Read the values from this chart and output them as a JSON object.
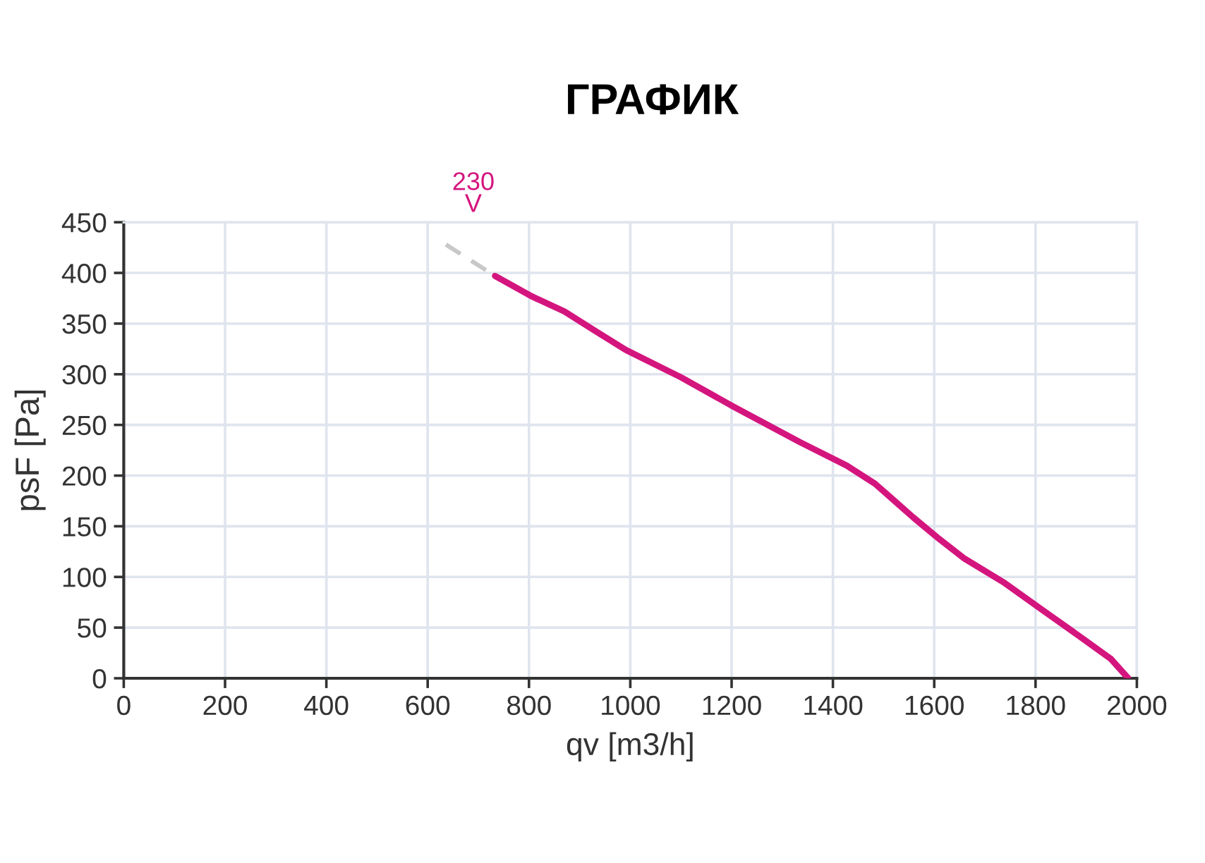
{
  "chart_data": {
    "type": "line",
    "title": "ГРАФИК",
    "xlabel": "qv [m3/h]",
    "ylabel": "psF [Pa]",
    "xlim": [
      0,
      2000
    ],
    "xticks": [
      0,
      200,
      400,
      600,
      800,
      1000,
      1200,
      1400,
      1600,
      1800,
      2000
    ],
    "ylim": [
      0,
      450
    ],
    "yticks": [
      0,
      50,
      100,
      150,
      200,
      250,
      300,
      350,
      400,
      450
    ],
    "grid": true,
    "legend": false,
    "marker": "none",
    "series": [
      {
        "color": "#c8c8c8",
        "line_style": "dashed",
        "x": [
          636,
          733
        ],
        "values": [
          428,
          397
        ]
      },
      {
        "name": "230\nV",
        "color": "#d4157e",
        "line_style": "solid",
        "x": [
          733,
          805,
          870,
          930,
          991,
          1100,
          1204,
          1335,
          1427,
          1483,
          1558,
          1606,
          1660,
          1736,
          1812,
          1888,
          1949,
          1983
        ],
        "values": [
          397,
          377,
          362,
          343,
          324,
          297,
          268,
          233,
          210,
          192,
          159,
          139,
          118,
          95,
          68,
          41,
          19,
          0
        ]
      }
    ]
  }
}
